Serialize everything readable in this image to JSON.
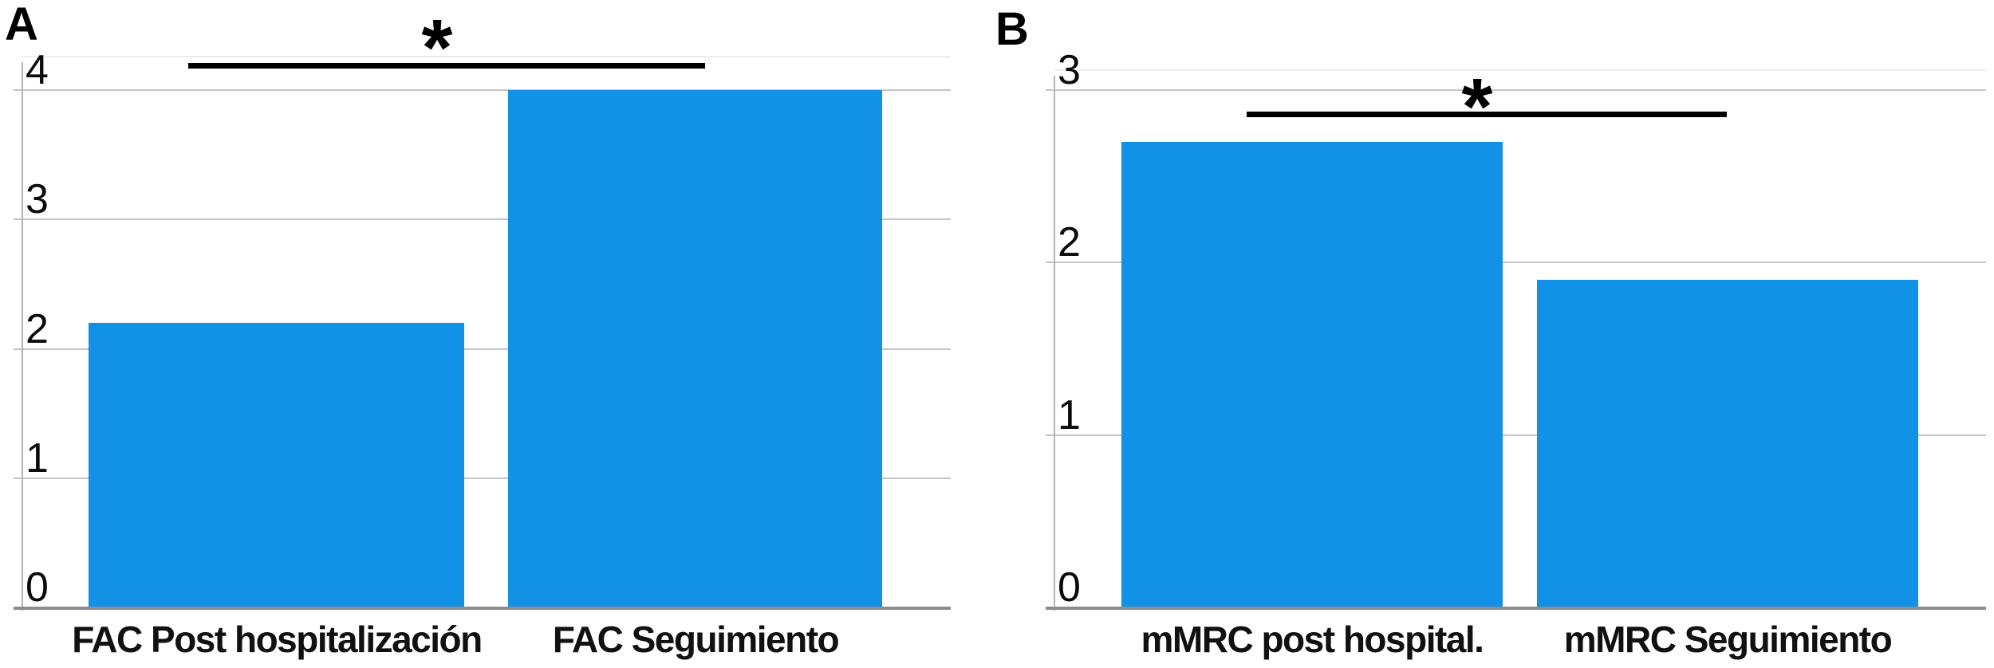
{
  "figure": {
    "background": "#ffffff",
    "panel_letters": [
      "A",
      "B"
    ]
  },
  "colors": {
    "bar": "#1292E6",
    "gridline": "#c6c6c6",
    "y_axis": "#b4b4b4",
    "x_axis": "#8c8c8c",
    "significance": "#000000",
    "text": "#0a0a0a"
  },
  "chart_data": [
    {
      "type": "bar",
      "panel_label": "A",
      "title": "",
      "xlabel": "",
      "ylabel": "",
      "categories": [
        "FAC Post hospitalización",
        "FAC Seguimiento"
      ],
      "values": [
        2.2,
        4.0
      ],
      "ylim": [
        0,
        4
      ],
      "yticks": [
        0,
        1,
        2,
        3,
        4
      ],
      "grid": true,
      "legend": "none",
      "significance": {
        "symbol": "*",
        "between": [
          "FAC Post hospitalización",
          "FAC Seguimiento"
        ]
      }
    },
    {
      "type": "bar",
      "panel_label": "B",
      "title": "",
      "xlabel": "",
      "ylabel": "",
      "categories": [
        "mMRC post hospital.",
        "mMRC Seguimiento"
      ],
      "values": [
        2.7,
        1.9
      ],
      "ylim": [
        0,
        3
      ],
      "yticks": [
        0,
        1,
        2,
        3
      ],
      "grid": true,
      "legend": "none",
      "significance": {
        "symbol": "*",
        "between": [
          "mMRC post hospital.",
          "mMRC Seguimiento"
        ]
      }
    }
  ]
}
